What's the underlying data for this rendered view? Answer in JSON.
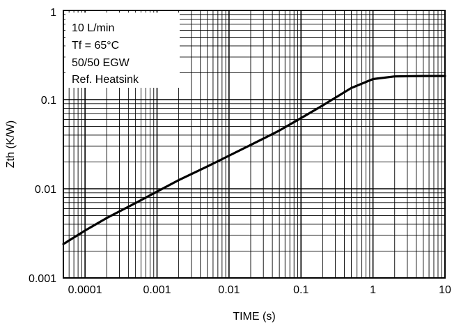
{
  "chart_data": {
    "type": "line",
    "title": "",
    "xlabel": "TIME (s)",
    "ylabel": "Zth (K/W)",
    "xscale": "log",
    "yscale": "log",
    "xlim": [
      5e-05,
      10
    ],
    "ylim": [
      0.001,
      1
    ],
    "grid": true,
    "x_ticks": [
      {
        "value": 0.0001,
        "label": "0.0001"
      },
      {
        "value": 0.001,
        "label": "0.001"
      },
      {
        "value": 0.01,
        "label": "0.01"
      },
      {
        "value": 0.1,
        "label": "0.1"
      },
      {
        "value": 1,
        "label": "1"
      },
      {
        "value": 10,
        "label": "10"
      }
    ],
    "y_ticks": [
      {
        "value": 0.001,
        "label": "0.001"
      },
      {
        "value": 0.01,
        "label": "0.01"
      },
      {
        "value": 0.1,
        "label": "0.1"
      },
      {
        "value": 1,
        "label": "1"
      }
    ],
    "annotations": [
      "10 L/min",
      "Tf = 65°C",
      "50/50 EGW",
      "Ref. Heatsink"
    ],
    "annotation_placement": "top-left",
    "series": [
      {
        "color": "#000000",
        "points": [
          {
            "x": 5e-05,
            "y": 0.0024
          },
          {
            "x": 0.0001,
            "y": 0.0034
          },
          {
            "x": 0.0002,
            "y": 0.0047
          },
          {
            "x": 0.0005,
            "y": 0.0069
          },
          {
            "x": 0.001,
            "y": 0.0093
          },
          {
            "x": 0.002,
            "y": 0.0125
          },
          {
            "x": 0.005,
            "y": 0.0178
          },
          {
            "x": 0.01,
            "y": 0.0235
          },
          {
            "x": 0.02,
            "y": 0.031
          },
          {
            "x": 0.05,
            "y": 0.045
          },
          {
            "x": 0.1,
            "y": 0.062
          },
          {
            "x": 0.2,
            "y": 0.086
          },
          {
            "x": 0.5,
            "y": 0.135
          },
          {
            "x": 1,
            "y": 0.17
          },
          {
            "x": 2,
            "y": 0.182
          },
          {
            "x": 5,
            "y": 0.184
          },
          {
            "x": 10,
            "y": 0.184
          }
        ]
      }
    ]
  }
}
